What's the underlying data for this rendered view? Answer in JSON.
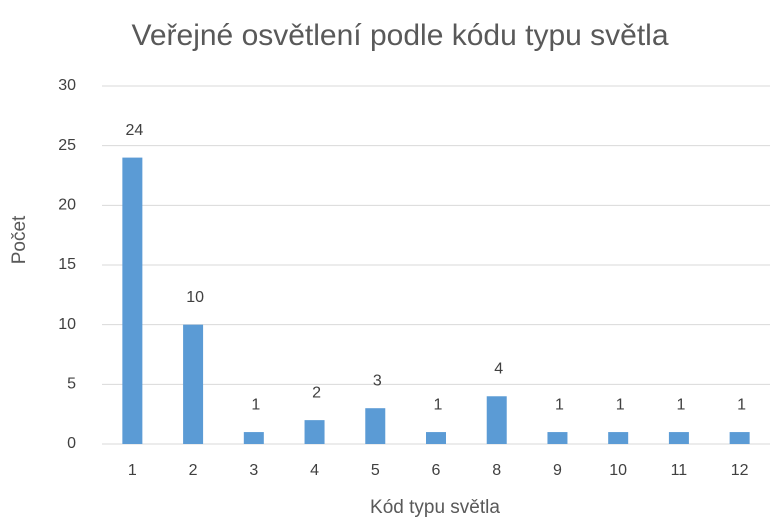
{
  "chart_data": {
    "type": "bar",
    "title": "Veřejné osvětlení podle kódu typu světla",
    "x_label": "Kód typu světla",
    "y_label": "Počet",
    "categories": [
      "1",
      "2",
      "3",
      "4",
      "5",
      "6",
      "8",
      "9",
      "10",
      "11",
      "12"
    ],
    "values": [
      24,
      10,
      1,
      2,
      3,
      1,
      4,
      1,
      1,
      1,
      1
    ],
    "color": "#5b9bd5",
    "ylim": [
      0,
      30
    ],
    "yticks": [
      0,
      5,
      10,
      15,
      20,
      25,
      30
    ],
    "grid": true
  }
}
